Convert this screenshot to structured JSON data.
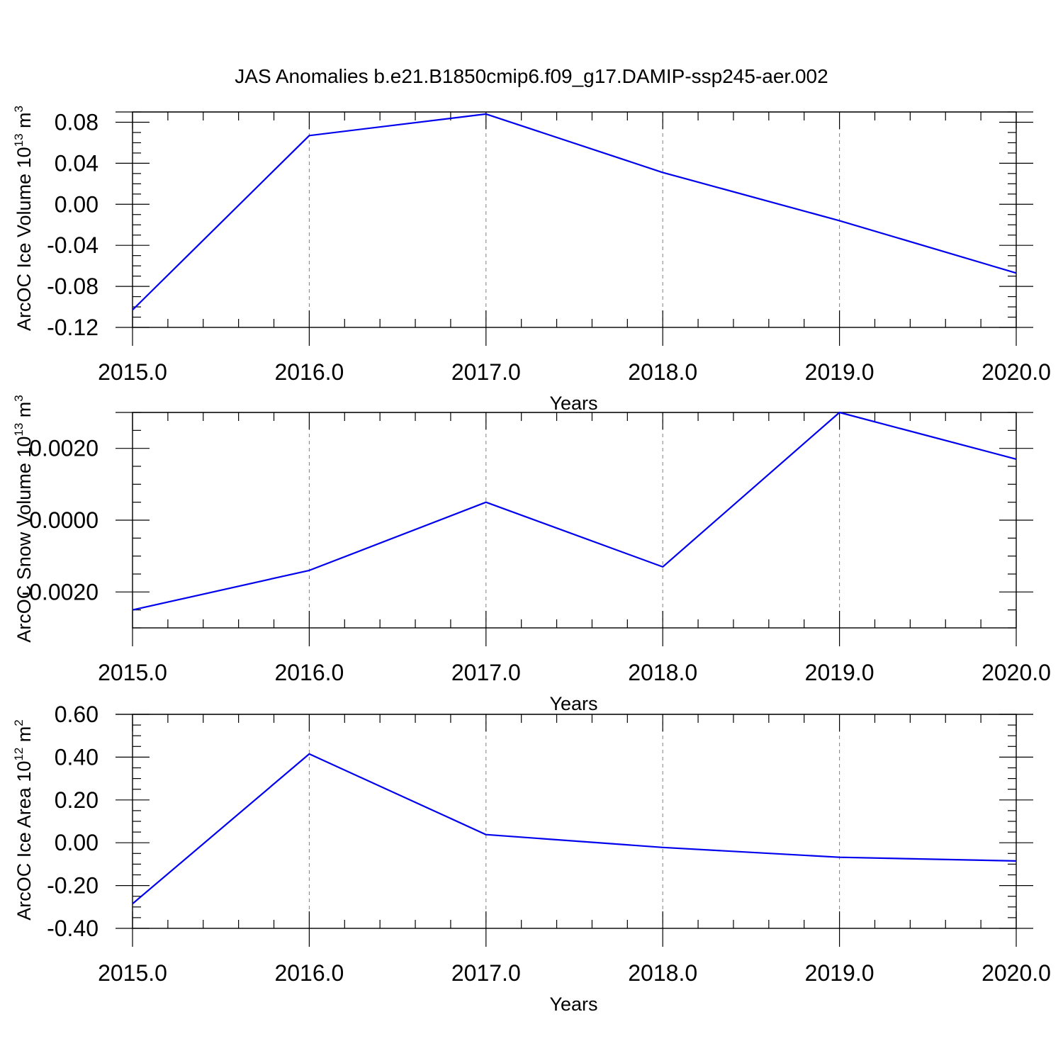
{
  "title": "JAS Anomalies b.e21.B1850cmip6.f09_g17.DAMIP-ssp245-aer.002",
  "colors": {
    "line": "#0000ee",
    "grid": "#808080",
    "axes": "#000000"
  },
  "chart_data": [
    {
      "type": "line",
      "xlabel": "Years",
      "ylabel": {
        "text": "ArcOC Ice Volume 10",
        "sup": "13",
        "unit": " m",
        "unit_sup": "3"
      },
      "xlim": [
        2015,
        2020
      ],
      "ylim": [
        -0.12,
        0.09
      ],
      "x_ticks": [
        2015,
        2016,
        2017,
        2018,
        2019,
        2020
      ],
      "x_tick_labels": [
        "2015.0",
        "2016.0",
        "2017.0",
        "2018.0",
        "2019.0",
        "2020.0"
      ],
      "x_minor_step": 0.2,
      "y_ticks": [
        -0.12,
        -0.08,
        -0.04,
        0.0,
        0.04,
        0.08
      ],
      "y_tick_labels": [
        "-0.12",
        "-0.08",
        "-0.04",
        "0.00",
        "0.04",
        "0.08"
      ],
      "y_minor_step": 0.01,
      "grid": "x",
      "x": [
        2015,
        2016,
        2017,
        2018,
        2019,
        2020
      ],
      "series": [
        {
          "values": [
            -0.103,
            0.067,
            0.088,
            0.031,
            -0.016,
            -0.067
          ]
        }
      ]
    },
    {
      "type": "line",
      "xlabel": "Years",
      "ylabel": {
        "text": "ArcOC Snow Volume 10",
        "sup": "13",
        "unit": " m",
        "unit_sup": "3"
      },
      "xlim": [
        2015,
        2020
      ],
      "ylim": [
        -0.003,
        0.003
      ],
      "x_ticks": [
        2015,
        2016,
        2017,
        2018,
        2019,
        2020
      ],
      "x_tick_labels": [
        "2015.0",
        "2016.0",
        "2017.0",
        "2018.0",
        "2019.0",
        "2020.0"
      ],
      "x_minor_step": 0.2,
      "y_ticks": [
        -0.002,
        0.0,
        0.002
      ],
      "y_tick_labels": [
        "-0.0020",
        "0.0000",
        "0.0020"
      ],
      "y_minor_step": 0.0005,
      "grid": "x",
      "x": [
        2015,
        2016,
        2017,
        2018,
        2019,
        2020
      ],
      "series": [
        {
          "values": [
            -0.0025,
            -0.0014,
            0.0005,
            -0.0013,
            0.003,
            0.0017
          ]
        }
      ]
    },
    {
      "type": "line",
      "xlabel": "Years",
      "ylabel": {
        "text": "ArcOC Ice Area 10",
        "sup": "12",
        "unit": " m",
        "unit_sup": "2"
      },
      "xlim": [
        2015,
        2020
      ],
      "ylim": [
        -0.4,
        0.6
      ],
      "x_ticks": [
        2015,
        2016,
        2017,
        2018,
        2019,
        2020
      ],
      "x_tick_labels": [
        "2015.0",
        "2016.0",
        "2017.0",
        "2018.0",
        "2019.0",
        "2020.0"
      ],
      "x_minor_step": 0.2,
      "y_ticks": [
        -0.4,
        -0.2,
        0.0,
        0.2,
        0.4,
        0.6
      ],
      "y_tick_labels": [
        "-0.40",
        "-0.20",
        "0.00",
        "0.20",
        "0.40",
        "0.60"
      ],
      "y_minor_step": 0.05,
      "grid": "x",
      "x": [
        2015,
        2016,
        2017,
        2018,
        2019,
        2020
      ],
      "series": [
        {
          "values": [
            -0.285,
            0.415,
            0.038,
            -0.022,
            -0.068,
            -0.085
          ]
        }
      ]
    }
  ]
}
